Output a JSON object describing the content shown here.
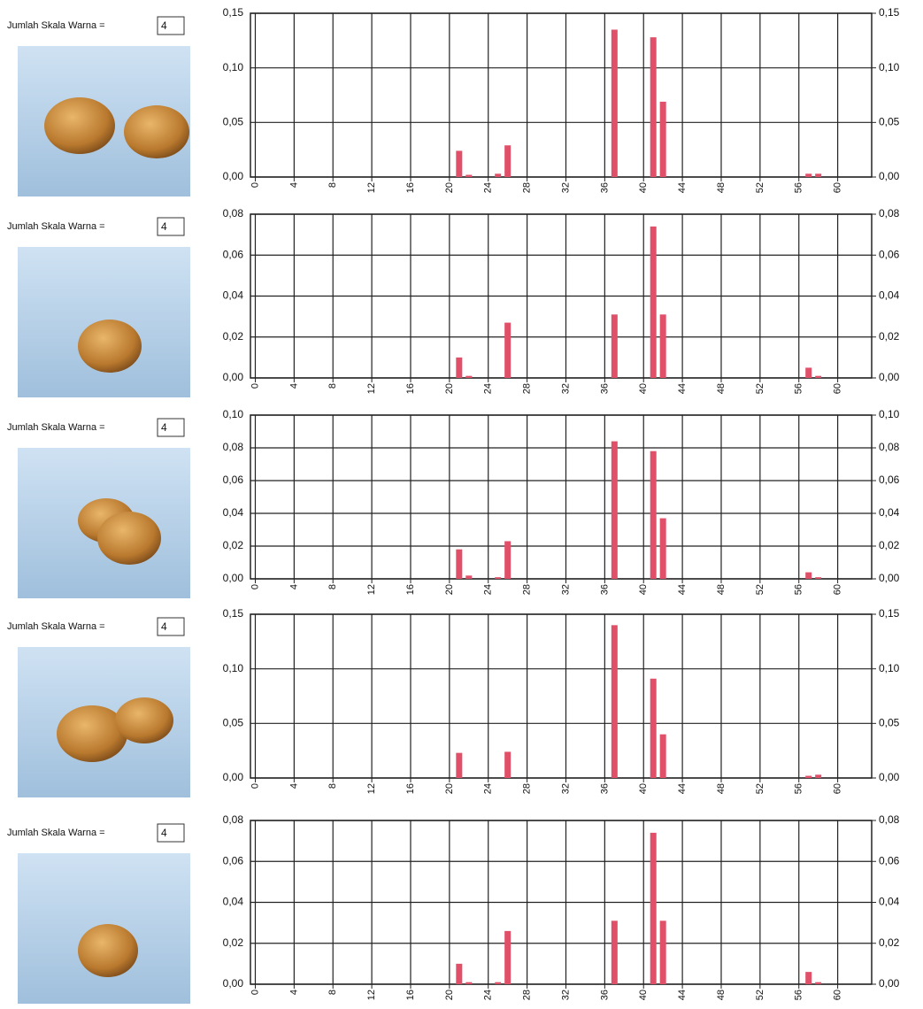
{
  "chart_data": [
    {
      "type": "bar",
      "label": "Jumlah Skala Warna =",
      "scale_count": "4",
      "color": "#e05068",
      "x": [
        21,
        22,
        25,
        26,
        37,
        41,
        42,
        57,
        58
      ],
      "values": [
        0.024,
        0.002,
        0.003,
        0.029,
        0.135,
        0.128,
        0.069,
        0.003,
        0.003
      ],
      "xlim": [
        -0.5,
        63.5
      ],
      "xticks": [
        0,
        4,
        8,
        12,
        16,
        20,
        24,
        28,
        32,
        36,
        40,
        44,
        48,
        52,
        56,
        60
      ],
      "ylim": [
        0,
        0.15
      ],
      "yticks": [
        {
          "value": 0,
          "label": "0,00"
        },
        {
          "value": 0.05,
          "label": "0,05"
        },
        {
          "value": 0.1,
          "label": "0,10"
        },
        {
          "value": 0.15,
          "label": "0,15"
        }
      ],
      "grid": true
    },
    {
      "type": "bar",
      "label": "Jumlah Skala Warna =",
      "scale_count": "4",
      "color": "#e05068",
      "x": [
        21,
        22,
        26,
        37,
        41,
        42,
        57,
        58
      ],
      "values": [
        0.01,
        0.001,
        0.027,
        0.031,
        0.074,
        0.031,
        0.005,
        0.001
      ],
      "xlim": [
        -0.5,
        63.5
      ],
      "xticks": [
        0,
        4,
        8,
        12,
        16,
        20,
        24,
        28,
        32,
        36,
        40,
        44,
        48,
        52,
        56,
        60
      ],
      "ylim": [
        0,
        0.08
      ],
      "yticks": [
        {
          "value": 0,
          "label": "0,00"
        },
        {
          "value": 0.02,
          "label": "0,02"
        },
        {
          "value": 0.04,
          "label": "0,04"
        },
        {
          "value": 0.06,
          "label": "0,06"
        },
        {
          "value": 0.08,
          "label": "0,08"
        }
      ],
      "grid": true
    },
    {
      "type": "bar",
      "label": "Jumlah Skala Warna =",
      "scale_count": "4",
      "color": "#e05068",
      "x": [
        21,
        22,
        25,
        26,
        37,
        41,
        42,
        57,
        58
      ],
      "values": [
        0.018,
        0.002,
        0.001,
        0.023,
        0.084,
        0.078,
        0.037,
        0.004,
        0.001
      ],
      "xlim": [
        -0.5,
        63.5
      ],
      "xticks": [
        0,
        4,
        8,
        12,
        16,
        20,
        24,
        28,
        32,
        36,
        40,
        44,
        48,
        52,
        56,
        60
      ],
      "ylim": [
        0,
        0.1
      ],
      "yticks": [
        {
          "value": 0,
          "label": "0,00"
        },
        {
          "value": 0.02,
          "label": "0,02"
        },
        {
          "value": 0.04,
          "label": "0,04"
        },
        {
          "value": 0.06,
          "label": "0,06"
        },
        {
          "value": 0.08,
          "label": "0,08"
        },
        {
          "value": 0.1,
          "label": "0,10"
        }
      ],
      "grid": true
    },
    {
      "type": "bar",
      "label": "Jumlah Skala Warna =",
      "scale_count": "4",
      "color": "#e05068",
      "x": [
        21,
        26,
        37,
        41,
        42,
        57,
        58
      ],
      "values": [
        0.023,
        0.024,
        0.14,
        0.091,
        0.04,
        0.002,
        0.003
      ],
      "xlim": [
        -0.5,
        63.5
      ],
      "xticks": [
        0,
        4,
        8,
        12,
        16,
        20,
        24,
        28,
        32,
        36,
        40,
        44,
        48,
        52,
        56,
        60
      ],
      "ylim": [
        0,
        0.15
      ],
      "yticks": [
        {
          "value": 0,
          "label": "0,00"
        },
        {
          "value": 0.05,
          "label": "0,05"
        },
        {
          "value": 0.1,
          "label": "0,10"
        },
        {
          "value": 0.15,
          "label": "0,15"
        }
      ],
      "grid": true
    },
    {
      "type": "bar",
      "label": "Jumlah Skala Warna =",
      "scale_count": "4",
      "color": "#e05068",
      "x": [
        21,
        22,
        25,
        26,
        37,
        41,
        42,
        57,
        58
      ],
      "values": [
        0.01,
        0.001,
        0.001,
        0.026,
        0.031,
        0.074,
        0.031,
        0.006,
        0.001
      ],
      "xlim": [
        -0.5,
        63.5
      ],
      "xticks": [
        0,
        4,
        8,
        12,
        16,
        20,
        24,
        28,
        32,
        36,
        40,
        44,
        48,
        52,
        56,
        60
      ],
      "ylim": [
        0,
        0.08
      ],
      "yticks": [
        {
          "value": 0,
          "label": "0,00"
        },
        {
          "value": 0.02,
          "label": "0,02"
        },
        {
          "value": 0.04,
          "label": "0,04"
        },
        {
          "value": 0.06,
          "label": "0,06"
        },
        {
          "value": 0.08,
          "label": "0,08"
        }
      ],
      "grid": true
    }
  ]
}
